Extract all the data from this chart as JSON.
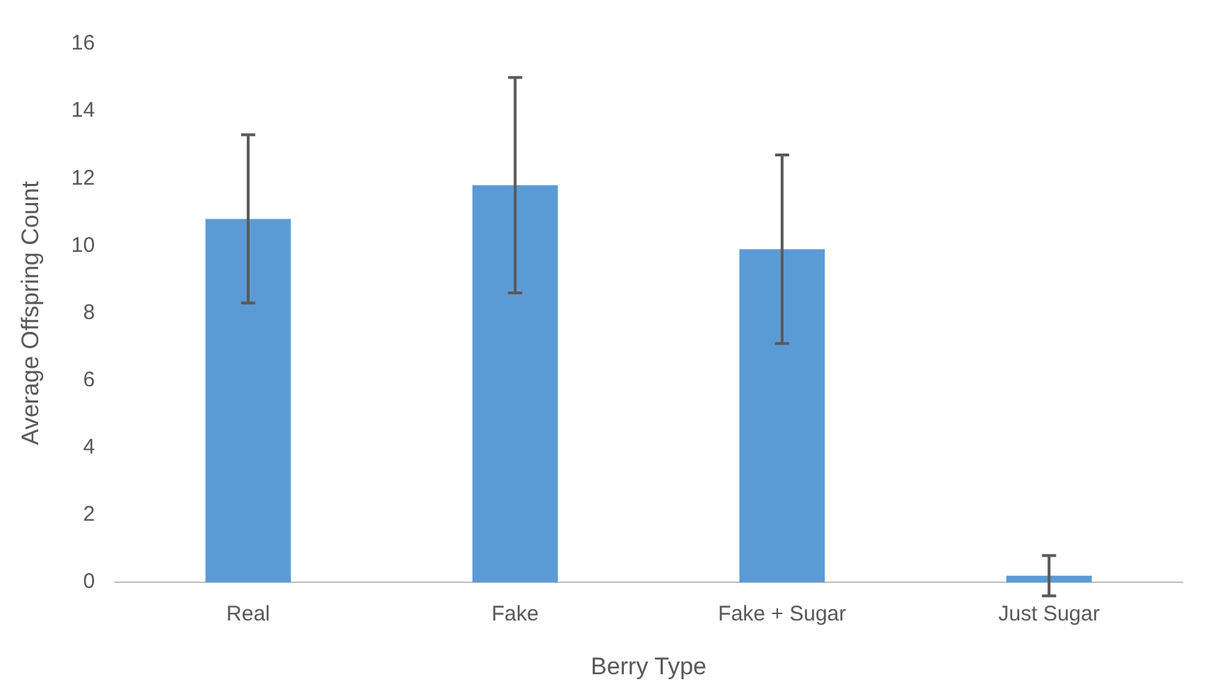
{
  "chart_data": {
    "type": "bar",
    "xlabel": "Berry Type",
    "ylabel": "Average Offspring Count",
    "categories": [
      "Real",
      "Fake",
      "Fake + Sugar",
      "Just Sugar"
    ],
    "values": [
      10.8,
      11.8,
      9.9,
      0.2
    ],
    "errors": [
      2.5,
      3.2,
      2.8,
      0.6
    ],
    "color": "#5b9bd5",
    "ylim": [
      0,
      16
    ],
    "yticks": [
      0,
      2,
      4,
      6,
      8,
      10,
      12,
      14,
      16
    ],
    "grid": false,
    "legend": false
  }
}
